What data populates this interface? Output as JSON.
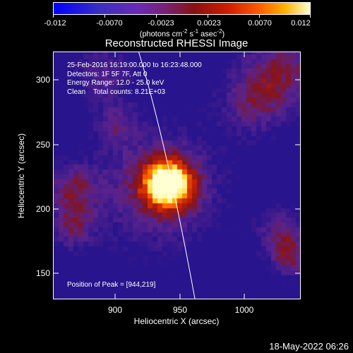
{
  "colorbar": {
    "ticks": [
      "-0.012",
      "-0.0070",
      "-0.0023",
      "0.0023",
      "0.0070",
      "0.012"
    ],
    "units_prefix": "(photons cm",
    "units_exp1": "-2",
    "units_mid": " s",
    "units_exp2": "-1",
    "units_mid2": " asec",
    "units_exp3": "-2",
    "units_suffix": ")"
  },
  "plot": {
    "title": "Reconstructed RHESSI Image",
    "annotations": {
      "time": "25-Feb-2016 16:19:00.000 to 16:23:48.000",
      "detectors": "Detectors: 1F 5F 7F, Att 0",
      "energy": "Energy Range: 12.0 - 25.0 keV",
      "clean": "Clean    Total counts: 8.21E+03",
      "peak": "Position of Peak = [944,219]"
    },
    "xlabel": "Heliocentric X (arcsec)",
    "ylabel": "Heliocentric Y (arcsec)",
    "xticks": [
      "900",
      "950",
      "1000"
    ],
    "yticks": [
      "300",
      "250",
      "200",
      "150"
    ]
  },
  "chart_data": {
    "type": "heatmap",
    "title": "Reconstructed RHESSI Image",
    "xlabel": "Heliocentric X (arcsec)",
    "ylabel": "Heliocentric Y (arcsec)",
    "xlim": [
      858,
      1042
    ],
    "ylim": [
      130,
      320
    ],
    "zlim": [
      -0.012,
      0.012
    ],
    "peak": [
      944,
      219
    ],
    "colormap": [
      "#0000ff",
      "#6a2ab8",
      "#8a1010",
      "#ff5a00",
      "#ffffd0"
    ]
  },
  "footer": {
    "date": "18-May-2022 06:26"
  }
}
